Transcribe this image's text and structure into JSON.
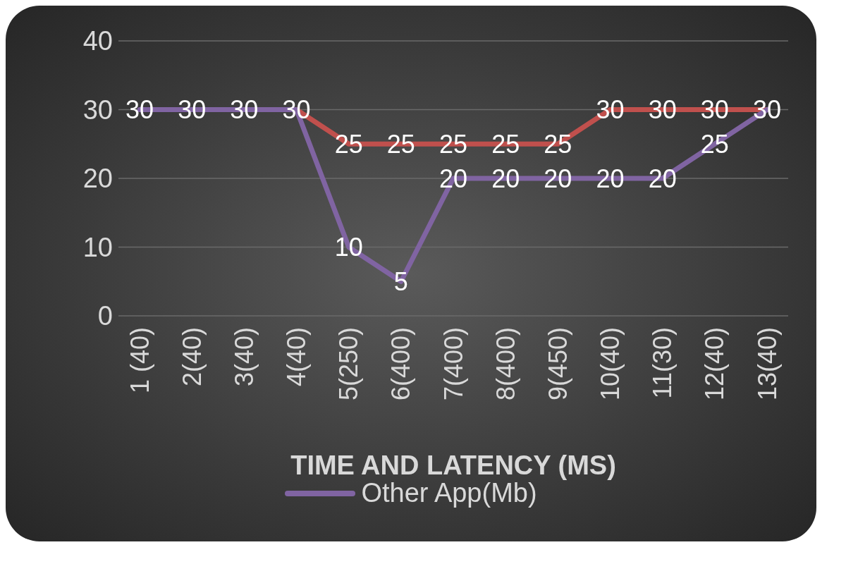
{
  "chart_data": {
    "type": "line",
    "categories": [
      "1 (40)",
      "2(40)",
      "3(40)",
      "4(40)",
      "5(250)",
      "6(400)",
      "7(400)",
      "8(400)",
      "9(450)",
      "10(40)",
      "11(30)",
      "12(40)",
      "13(40)"
    ],
    "series": [
      {
        "color": "#c0504d",
        "values": [
          null,
          null,
          null,
          30,
          25,
          25,
          25,
          25,
          25,
          30,
          30,
          30,
          30
        ],
        "value_labels": [
          null,
          null,
          null,
          null,
          "25",
          "25",
          "25",
          "25",
          "25",
          "30",
          "30",
          "30",
          "30"
        ]
      },
      {
        "name": "Other App(Mb)",
        "color": "#8064a2",
        "values": [
          30,
          30,
          30,
          30,
          10,
          5,
          20,
          20,
          20,
          20,
          20,
          25,
          30
        ],
        "value_labels": [
          "30",
          "30",
          "30",
          "30",
          "10",
          "5",
          "20",
          "20",
          "20",
          "20",
          "20",
          "25",
          null
        ]
      }
    ],
    "xlabel": "TIME AND LATENCY (MS)",
    "ylim": [
      0,
      40
    ],
    "yticks": [
      0,
      10,
      20,
      30,
      40
    ],
    "grid": "y",
    "legend": "bottom",
    "marker": "none",
    "line_style": "solid"
  }
}
